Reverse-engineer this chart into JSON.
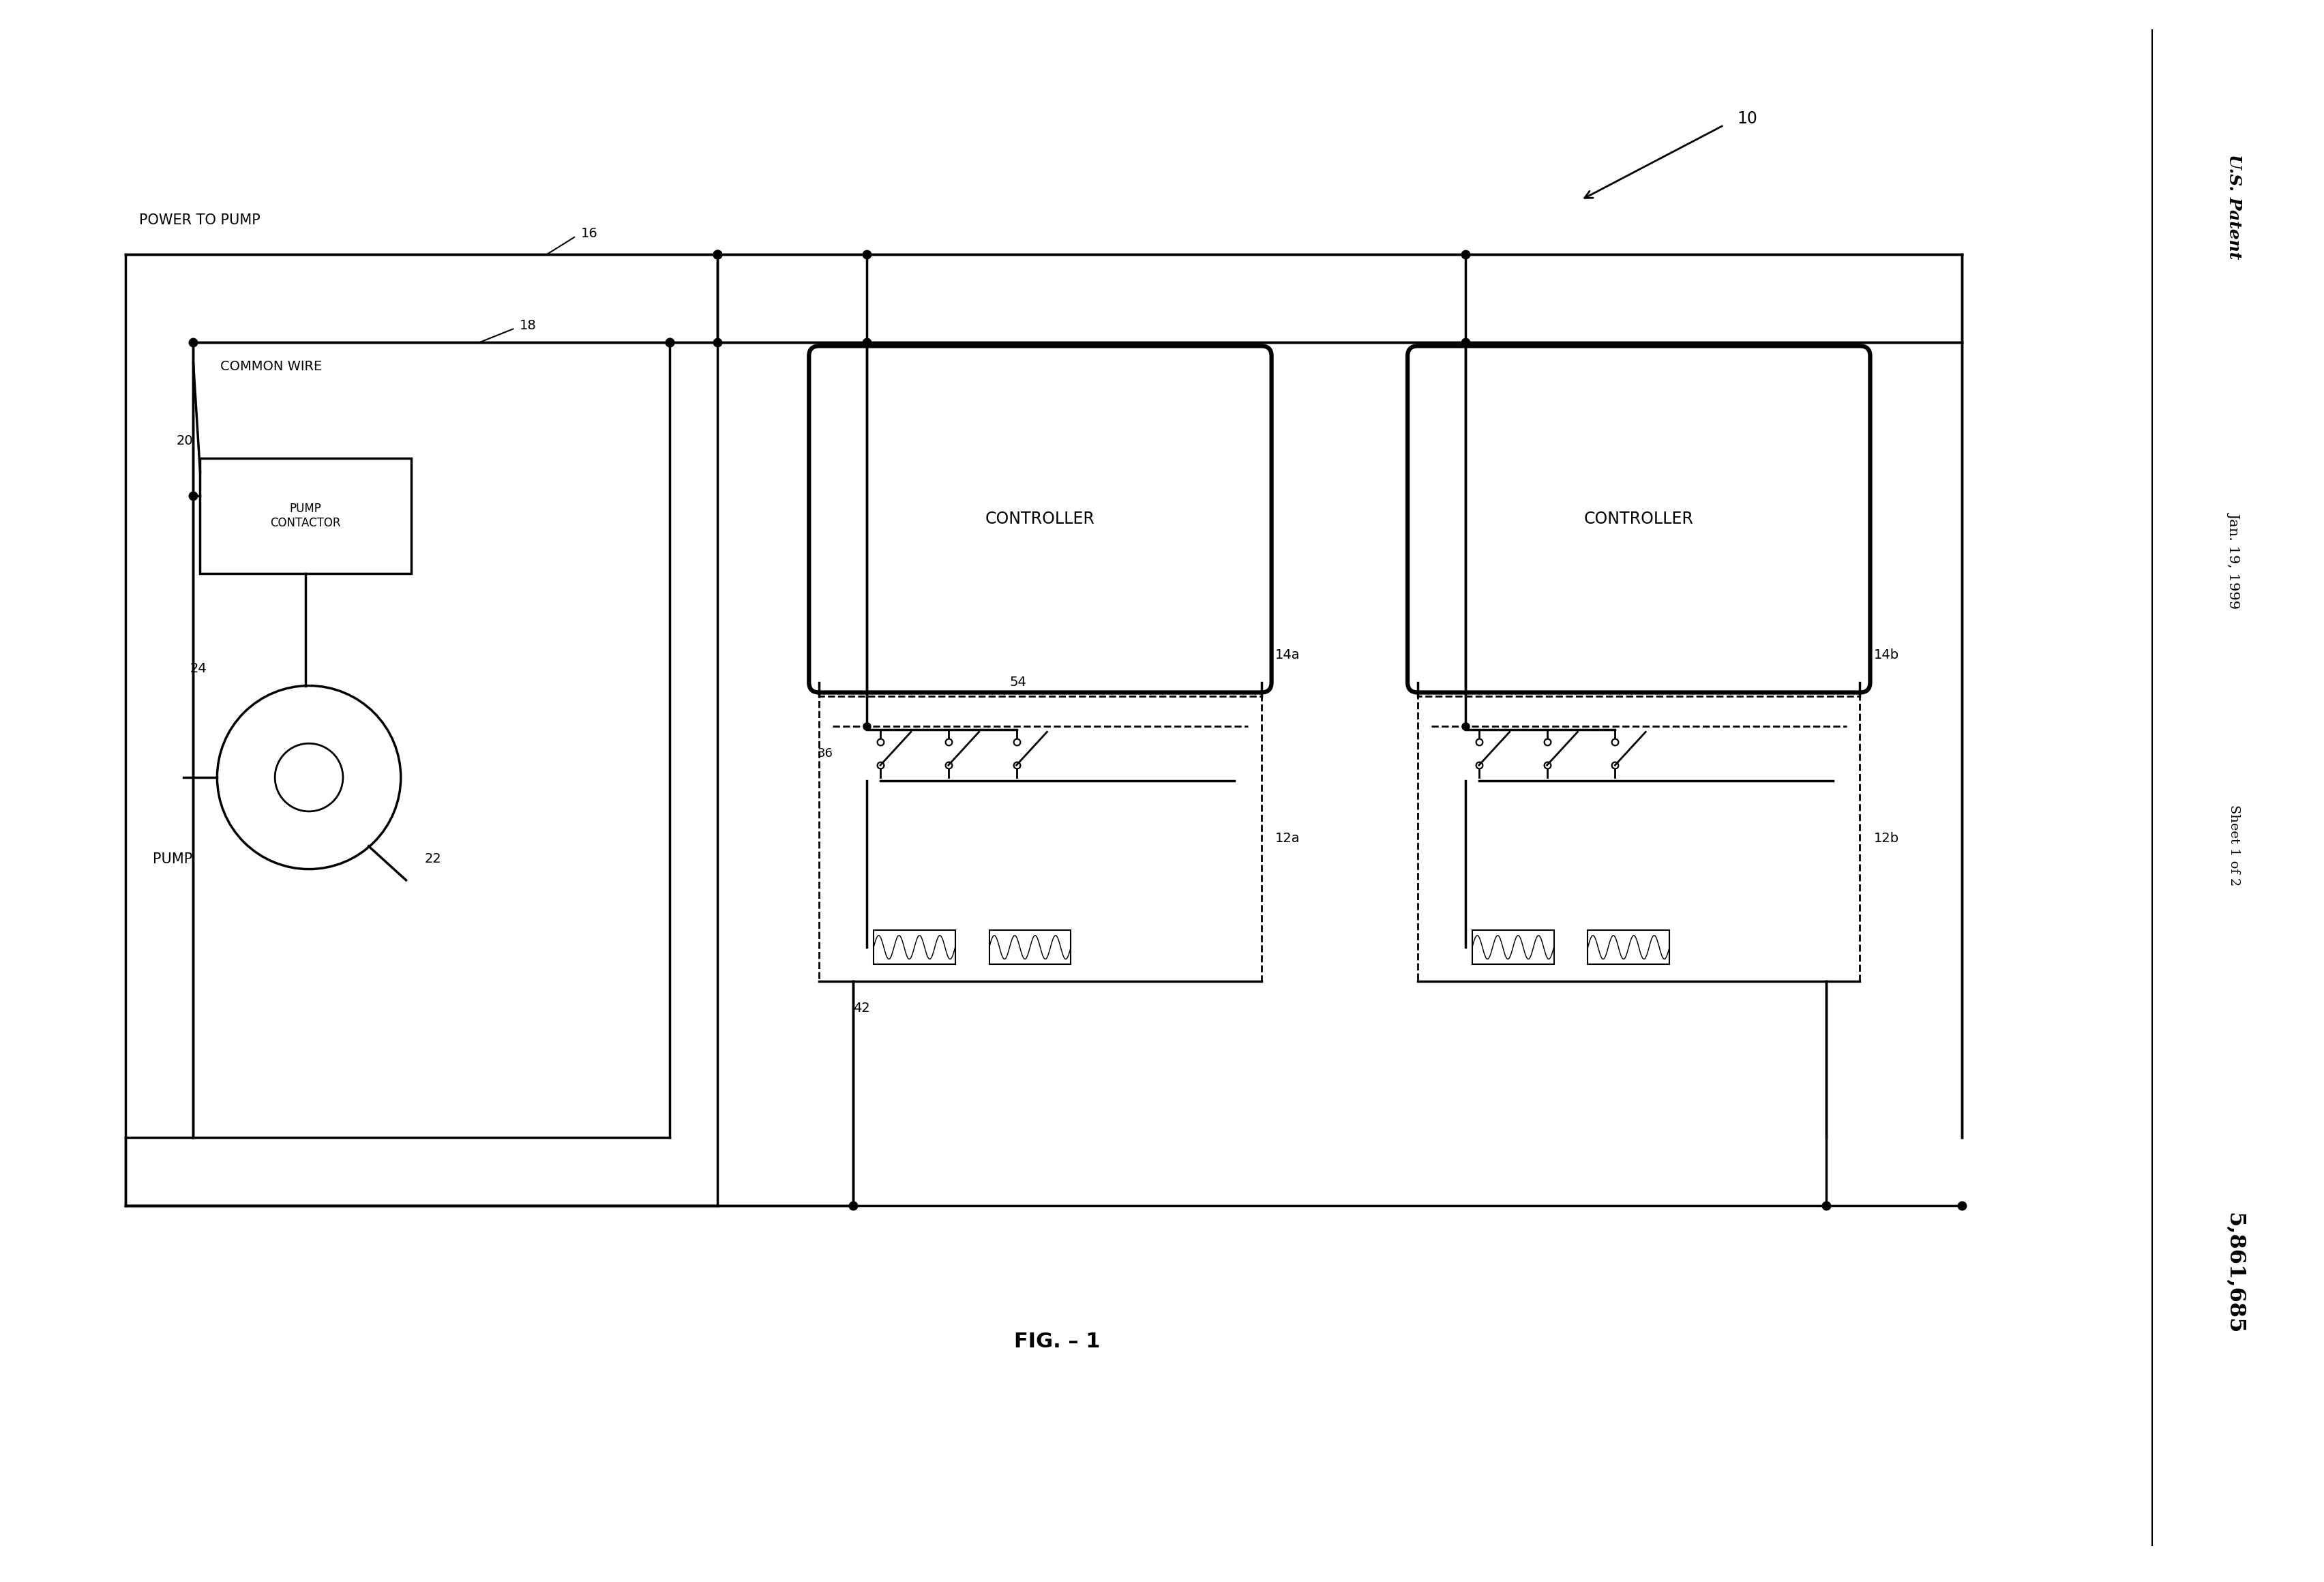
{
  "bg_color": "#ffffff",
  "line_color": "#000000",
  "title": "FIG. – 1",
  "patent_text": "U.S. Patent",
  "patent_date": "Jan. 19, 1999",
  "patent_sheet": "Sheet 1 of 2",
  "patent_number": "5,861,685",
  "labels": {
    "power_to_pump": "POWER TO PUMP",
    "common_wire": "COMMON WIRE",
    "pump_contactor": "PUMP\nCONTACTOR",
    "pump": "PUMP",
    "controller": "CONTROLLER",
    "ref_10": "10",
    "ref_16": "16",
    "ref_18": "18",
    "ref_20": "20",
    "ref_22": "22",
    "ref_24": "24",
    "ref_36": "36",
    "ref_42": "42",
    "ref_54": "54",
    "ref_12a": "12a",
    "ref_14a": "14a",
    "ref_12b": "12b",
    "ref_14b": "14b"
  }
}
